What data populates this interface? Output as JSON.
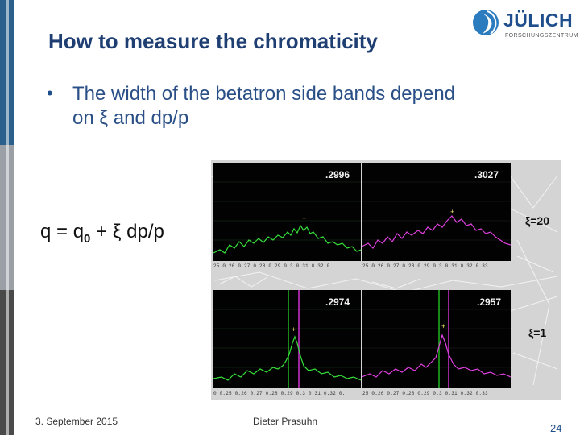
{
  "slide": {
    "title": "How to measure the chromaticity",
    "bullet_marker": "•",
    "bullet_line1": "The width of the betatron side bands depend",
    "bullet_line2": "on ξ and dp/p",
    "formula_prefix": "q = q",
    "formula_sub": "0",
    "formula_suffix": " + ξ dp/p"
  },
  "logo": {
    "name": "JÜLICH",
    "subtitle": "FORSCHUNGSZENTRUM"
  },
  "plots": {
    "top": {
      "label": "ξ=20",
      "left_value": ".2996",
      "right_value": ".3027",
      "left_ticks": "25  0.26  0.27  0.28  0.29  0.3  0.31  0.32  0.",
      "right_ticks": "25  0.26  0.27  0.28  0.29  0.3  0.31  0.32  0.33"
    },
    "bottom": {
      "label": "ξ=1",
      "left_value": ".2974",
      "right_value": ".2957",
      "left_ticks": "0  0.25  0.26  0.27  0.28  0.29  0.3  0.31  0.32  0.",
      "right_ticks": "25  0.26  0.27  0.28  0.29  0.3  0.31  0.32  0.33"
    },
    "colors": {
      "left_trace": "#36e13a",
      "right_trace": "#e040e0",
      "marker": "#f4e36a",
      "green_line": "#1fb51f",
      "magenta_line": "#d030d0"
    }
  },
  "footer": {
    "date": "3. September 2015",
    "author": "Dieter Prasuhn",
    "page": "24"
  }
}
